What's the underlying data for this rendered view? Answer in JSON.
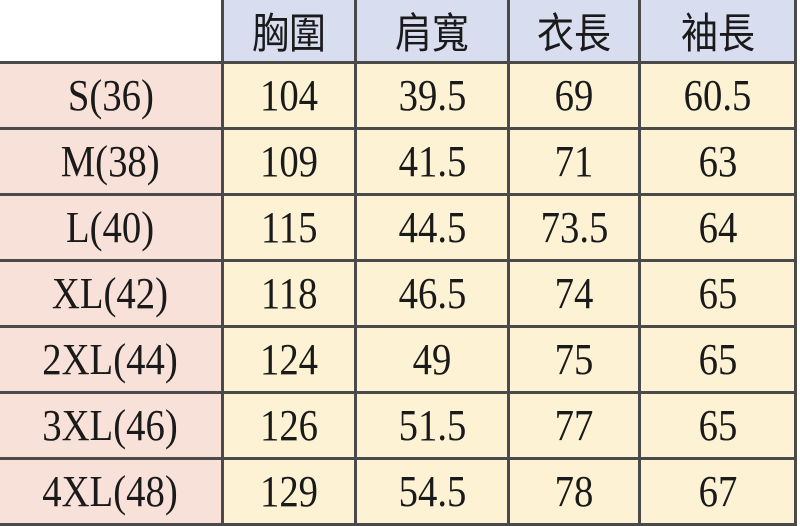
{
  "table": {
    "headers": [
      "",
      "胸圍",
      "肩寬",
      "衣長",
      "袖長"
    ],
    "rows": [
      [
        "S(36)",
        "104",
        "39.5",
        "69",
        "60.5"
      ],
      [
        "M(38)",
        "109",
        "41.5",
        "71",
        "63"
      ],
      [
        "L(40)",
        "115",
        "44.5",
        "73.5",
        "64"
      ],
      [
        "XL(42)",
        "118",
        "46.5",
        "74",
        "65"
      ],
      [
        "2XL(44)",
        "124",
        "49",
        "75",
        "65"
      ],
      [
        "3XL(46)",
        "126",
        "51.5",
        "77",
        "65"
      ],
      [
        "4XL(48)",
        "129",
        "54.5",
        "78",
        "67"
      ]
    ]
  },
  "colors": {
    "header_bg": "#d9ddf0",
    "size_col_bg": "#f8e1d8",
    "body_bg": "#fdf3d4",
    "border": "#4a4a4a"
  }
}
